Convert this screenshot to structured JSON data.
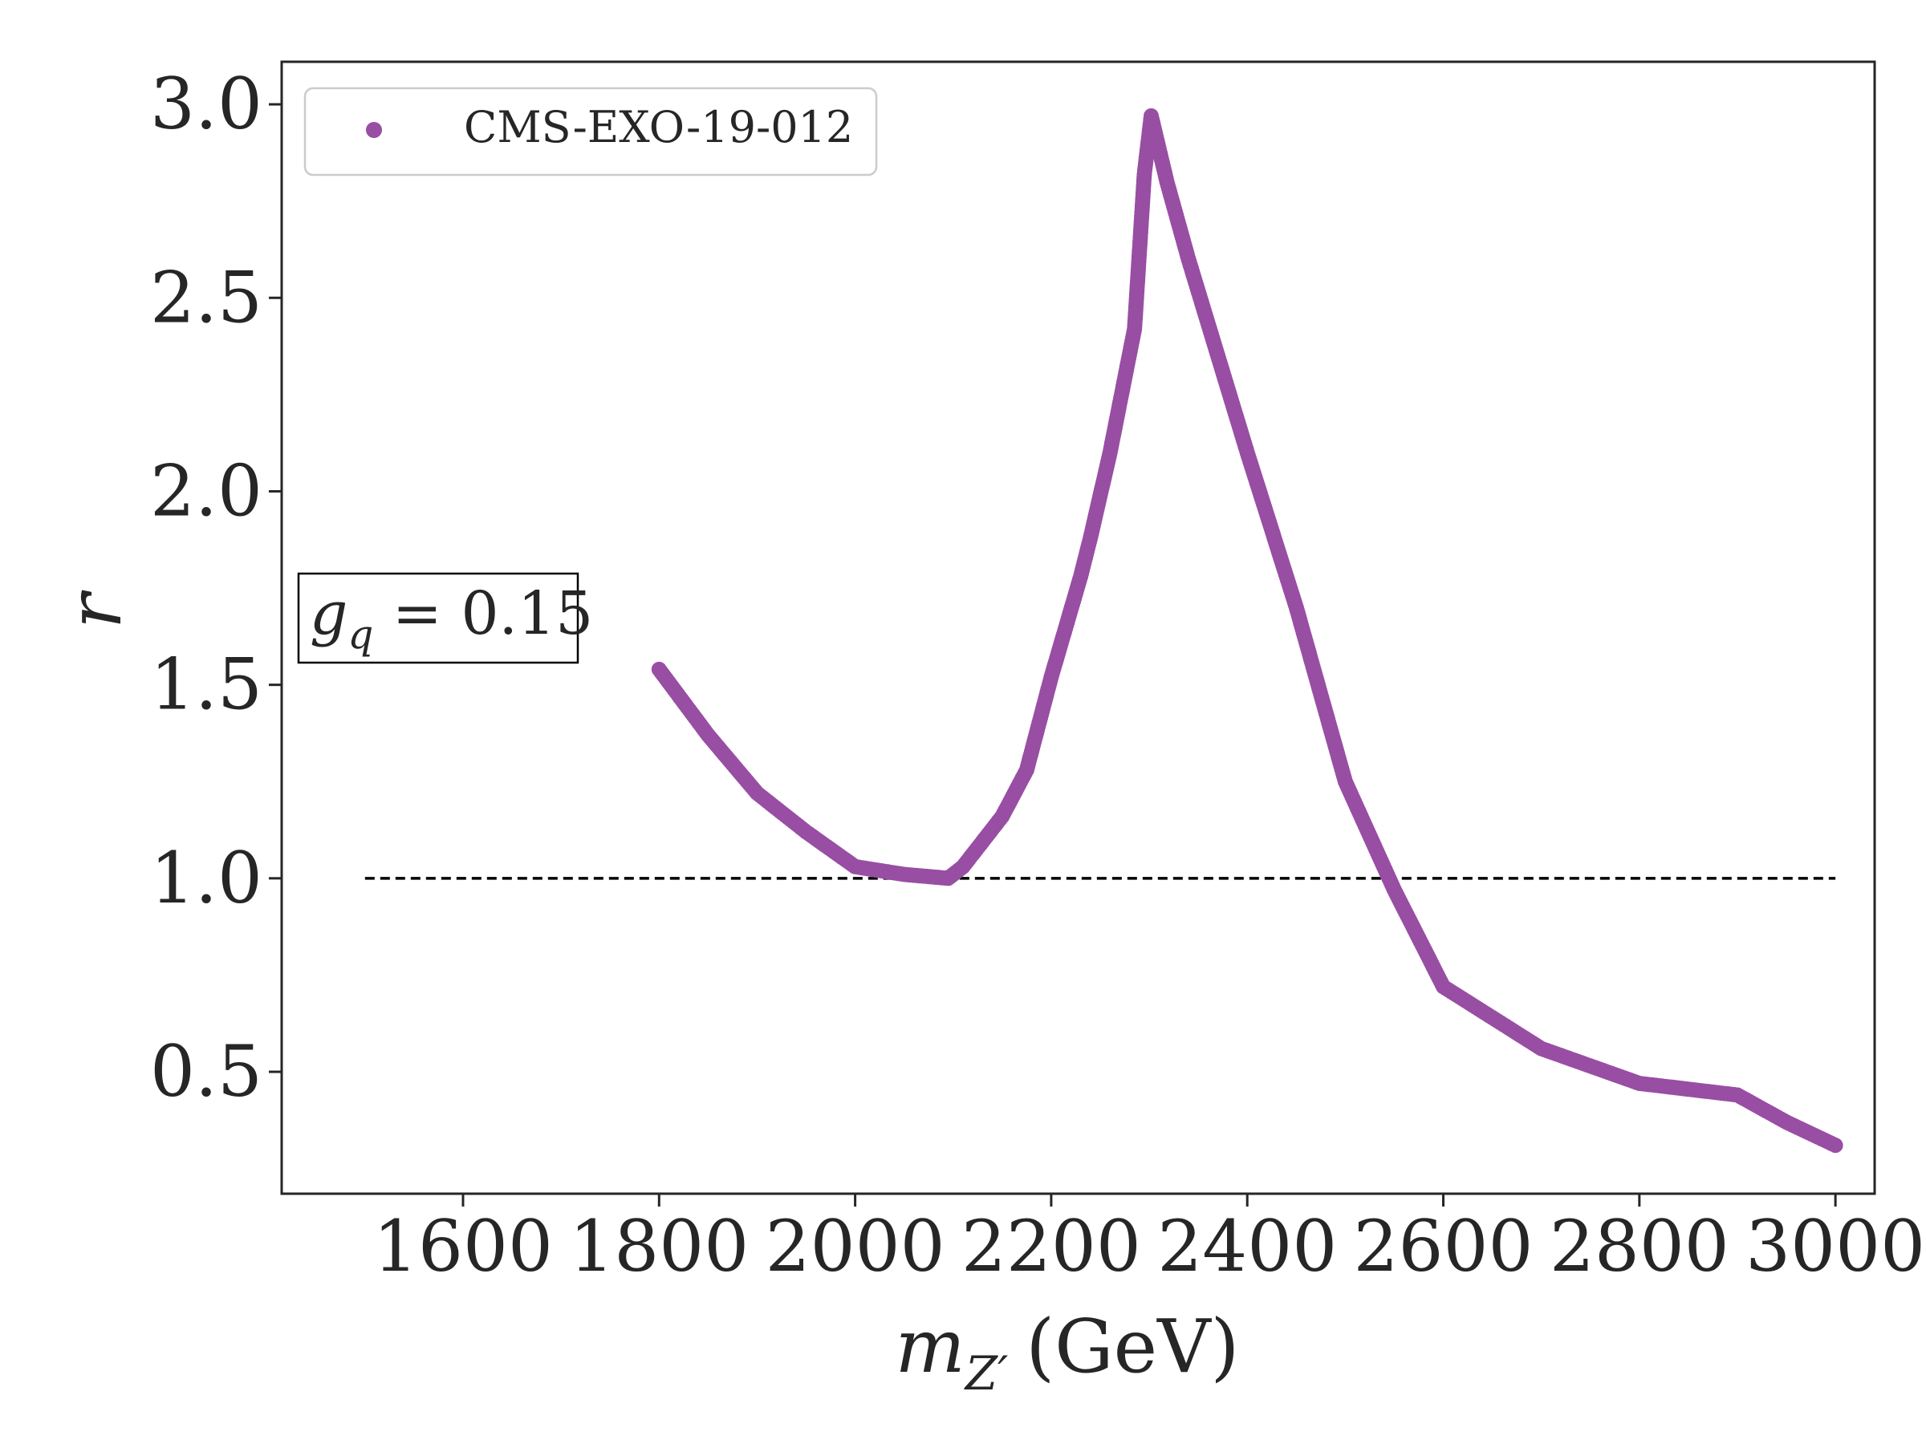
{
  "chart_data": {
    "type": "scatter",
    "xlabel": {
      "main": "m",
      "sub": "Z′",
      "unit": "(GeV)"
    },
    "ylabel": "r",
    "xlim": [
      1415,
      3040
    ],
    "ylim": [
      0.185,
      3.11
    ],
    "xticks": [
      1600,
      1800,
      2000,
      2200,
      2400,
      2600,
      2800,
      3000
    ],
    "yticks": [
      0.5,
      1.0,
      1.5,
      2.0,
      2.5,
      3.0
    ],
    "xtick_labels": [
      "1600",
      "1800",
      "2000",
      "2200",
      "2400",
      "2600",
      "2800",
      "3000"
    ],
    "ytick_labels": [
      "0.5",
      "1.0",
      "1.5",
      "2.0",
      "2.5",
      "3.0"
    ],
    "legend_position": "top-left",
    "grid": false,
    "annotation": {
      "text_main": "g",
      "text_sub": "q",
      "text_rest": " = 0.15"
    },
    "reference_line": {
      "y": 1.0,
      "x_start": 1500,
      "x_end": 3000,
      "style": "dashed",
      "color": "#000000"
    },
    "series": [
      {
        "name": "CMS-EXO-19-012",
        "color": "#984ea3",
        "marker": "circle",
        "points": [
          [
            1800,
            1.54
          ],
          [
            1850,
            1.37
          ],
          [
            1900,
            1.22
          ],
          [
            1950,
            1.12
          ],
          [
            2000,
            1.03
          ],
          [
            2050,
            1.01
          ],
          [
            2095,
            1.0
          ],
          [
            2110,
            1.03
          ],
          [
            2150,
            1.16
          ],
          [
            2175,
            1.28
          ],
          [
            2200,
            1.52
          ],
          [
            2230,
            1.78
          ],
          [
            2240,
            1.88
          ],
          [
            2260,
            2.1
          ],
          [
            2285,
            2.42
          ],
          [
            2295,
            2.82
          ],
          [
            2302,
            2.97
          ],
          [
            2318,
            2.8
          ],
          [
            2340,
            2.6
          ],
          [
            2370,
            2.35
          ],
          [
            2400,
            2.1
          ],
          [
            2450,
            1.7
          ],
          [
            2500,
            1.25
          ],
          [
            2550,
            0.97
          ],
          [
            2600,
            0.72
          ],
          [
            2650,
            0.64
          ],
          [
            2700,
            0.56
          ],
          [
            2800,
            0.47
          ],
          [
            2850,
            0.455
          ],
          [
            2900,
            0.44
          ],
          [
            2950,
            0.37
          ],
          [
            3000,
            0.31
          ]
        ]
      }
    ]
  }
}
